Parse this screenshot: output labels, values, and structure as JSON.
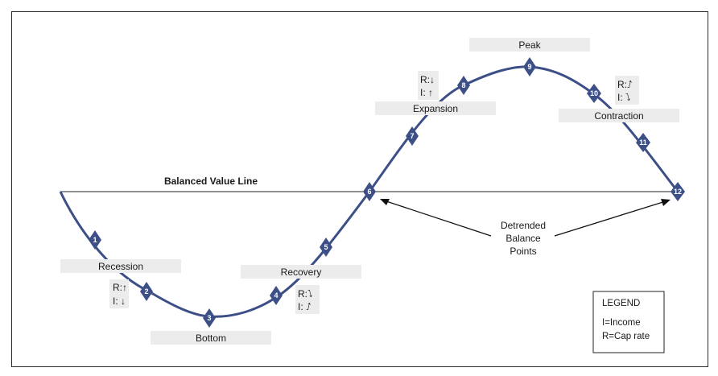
{
  "title_line": "Balanced Value Line",
  "phases": {
    "recession": "Recession",
    "bottom": "Bottom",
    "recovery": "Recovery",
    "expansion": "Expansion",
    "peak": "Peak",
    "contraction": "Contraction"
  },
  "points": [
    "1",
    "2",
    "3",
    "4",
    "5",
    "6",
    "7",
    "8",
    "9",
    "10",
    "11",
    "12"
  ],
  "detrended": [
    "Detrended",
    "Balance",
    "Points"
  ],
  "indicators": {
    "recession": {
      "r": "R:↑",
      "i": "I: ↓"
    },
    "recovery": {
      "r": "R:⭝",
      "i": "I: ⭜"
    },
    "expansion": {
      "r": "R:↓",
      "i": "I: ↑"
    },
    "contraction": {
      "r": "R:⭜",
      "i": "I: ⭝"
    }
  },
  "legend": {
    "title": "LEGEND",
    "income": "I=Income",
    "cap_rate": "R=Cap rate"
  },
  "colors": {
    "curve": "#3d4f87",
    "marker": "#3d4f87",
    "box": "#ececec"
  }
}
